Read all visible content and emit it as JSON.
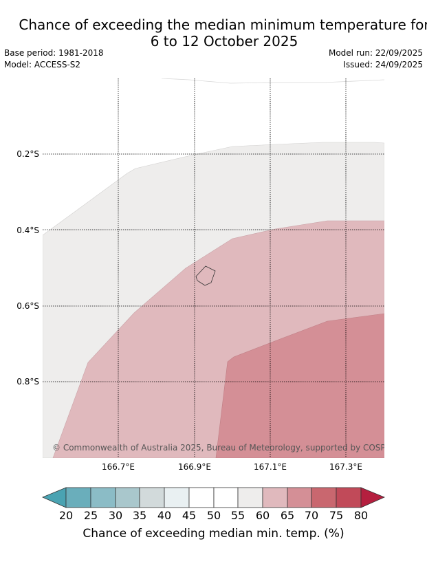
{
  "title": {
    "line1": "Chance of exceeding the median minimum temperature for",
    "line2": "6 to 12 October 2025"
  },
  "meta": {
    "base_period": "Base period: 1981-2018",
    "model": "Model: ACCESS-S2",
    "model_run": "Model run: 22/09/2025",
    "issued": "Issued: 24/09/2025"
  },
  "map": {
    "lon_labels": [
      "166.7°E",
      "166.9°E",
      "167.1°E",
      "167.3°E"
    ],
    "lat_labels": [
      "0.2°S",
      "0.4°S",
      "0.6°S",
      "0.8°S"
    ],
    "credit": "© Commonwealth of Australia 2025, Bureau of Meteorology, supported by COSPPac"
  },
  "colorbar": {
    "ticks": [
      "20",
      "25",
      "30",
      "35",
      "40",
      "45",
      "50",
      "55",
      "60",
      "65",
      "70",
      "75",
      "80"
    ],
    "label": "Chance of exceeding median min. temp. (%)",
    "colors": {
      "below20": "#4aa3b2",
      "b20_25": "#6aaebb",
      "b25_30": "#8bbcc6",
      "b30_35": "#a9c7cc",
      "b35_40": "#d2dadb",
      "b40_45": "#e9f0f2",
      "b45_50": "#ffffff",
      "b50_55": "#ffffff",
      "b55_60": "#eeedec",
      "b60_65": "#e0b9bd",
      "b65_70": "#d48f96",
      "b70_75": "#c9676f",
      "b75_80": "#c14a59",
      "above80": "#b51f3f"
    }
  }
}
